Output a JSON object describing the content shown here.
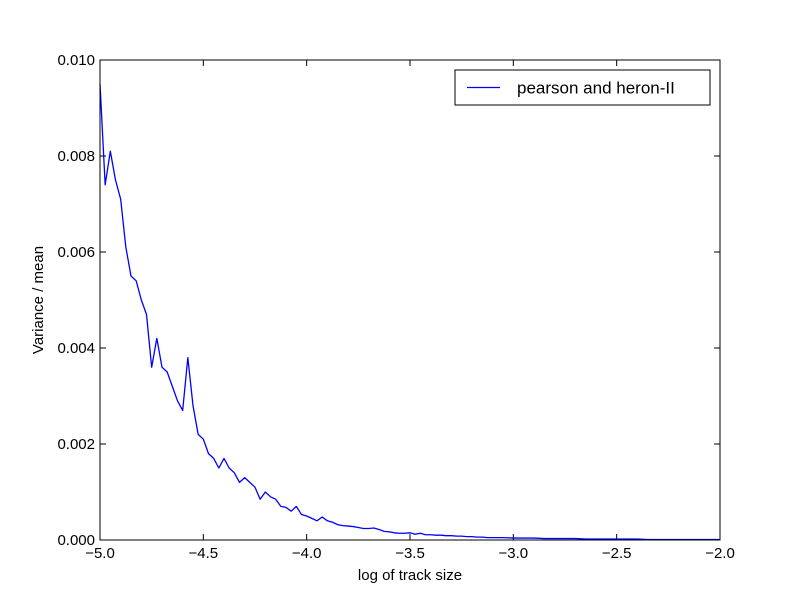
{
  "chart_data": {
    "type": "line",
    "xlabel": "log of track size",
    "ylabel": "Variance / mean",
    "xlim": [
      -5.0,
      -2.0
    ],
    "ylim": [
      0.0,
      0.01
    ],
    "xticks": [
      -5.0,
      -4.5,
      -4.0,
      -3.5,
      -3.0,
      -2.5,
      -2.0
    ],
    "xtick_labels": [
      "−5.0",
      "−4.5",
      "−4.0",
      "−3.5",
      "−3.0",
      "−2.5",
      "−2.0"
    ],
    "yticks": [
      0.0,
      0.002,
      0.004,
      0.006,
      0.008,
      0.01
    ],
    "ytick_labels": [
      "0.000",
      "0.002",
      "0.004",
      "0.006",
      "0.008",
      "0.010"
    ],
    "grid": false,
    "legend_position": "top-right",
    "series": [
      {
        "name": "pearson and heron-II",
        "color": "#0000ff",
        "x": [
          -5.0,
          -4.975,
          -4.95,
          -4.925,
          -4.9,
          -4.875,
          -4.85,
          -4.825,
          -4.8,
          -4.775,
          -4.75,
          -4.725,
          -4.7,
          -4.675,
          -4.65,
          -4.625,
          -4.6,
          -4.575,
          -4.55,
          -4.525,
          -4.5,
          -4.475,
          -4.45,
          -4.425,
          -4.4,
          -4.375,
          -4.35,
          -4.325,
          -4.3,
          -4.275,
          -4.25,
          -4.225,
          -4.2,
          -4.175,
          -4.15,
          -4.125,
          -4.1,
          -4.075,
          -4.05,
          -4.025,
          -4.0,
          -3.975,
          -3.95,
          -3.925,
          -3.9,
          -3.875,
          -3.85,
          -3.825,
          -3.8,
          -3.775,
          -3.75,
          -3.725,
          -3.7,
          -3.675,
          -3.65,
          -3.625,
          -3.6,
          -3.575,
          -3.55,
          -3.525,
          -3.5,
          -3.475,
          -3.45,
          -3.425,
          -3.4,
          -3.375,
          -3.35,
          -3.325,
          -3.3,
          -3.275,
          -3.25,
          -3.225,
          -3.2,
          -3.175,
          -3.15,
          -3.125,
          -3.1,
          -3.05,
          -3.0,
          -2.95,
          -2.9,
          -2.85,
          -2.8,
          -2.75,
          -2.7,
          -2.65,
          -2.6,
          -2.55,
          -2.5,
          -2.45,
          -2.4,
          -2.35,
          -2.3,
          -2.25,
          -2.2,
          -2.15,
          -2.1,
          -2.05,
          -2.0
        ],
        "y": [
          0.0095,
          0.0074,
          0.0081,
          0.0075,
          0.0071,
          0.0061,
          0.0055,
          0.0054,
          0.005,
          0.0047,
          0.0036,
          0.0042,
          0.0036,
          0.0035,
          0.0032,
          0.0029,
          0.0027,
          0.0038,
          0.0028,
          0.0022,
          0.0021,
          0.0018,
          0.0017,
          0.0015,
          0.0017,
          0.0015,
          0.0014,
          0.0012,
          0.0013,
          0.0012,
          0.0011,
          0.00085,
          0.001,
          0.0009,
          0.00085,
          0.0007,
          0.00068,
          0.0006,
          0.0007,
          0.00053,
          0.0005,
          0.00045,
          0.0004,
          0.00048,
          0.0004,
          0.00037,
          0.00032,
          0.0003,
          0.00029,
          0.00028,
          0.00026,
          0.00024,
          0.00024,
          0.00025,
          0.00022,
          0.00018,
          0.00017,
          0.00015,
          0.00014,
          0.00014,
          0.00015,
          0.00012,
          0.00014,
          0.00011,
          0.00011,
          0.0001,
          0.0001,
          9e-05,
          9e-05,
          8e-05,
          8e-05,
          7e-05,
          7e-05,
          6e-05,
          6e-05,
          5e-05,
          5e-05,
          5e-05,
          4e-05,
          4e-05,
          4e-05,
          3e-05,
          3e-05,
          3e-05,
          3e-05,
          2e-05,
          2e-05,
          2e-05,
          2e-05,
          2e-05,
          2e-05,
          1e-05,
          1e-05,
          1e-05,
          1e-05,
          1e-05,
          1e-05,
          1e-05,
          1e-05
        ]
      }
    ]
  }
}
